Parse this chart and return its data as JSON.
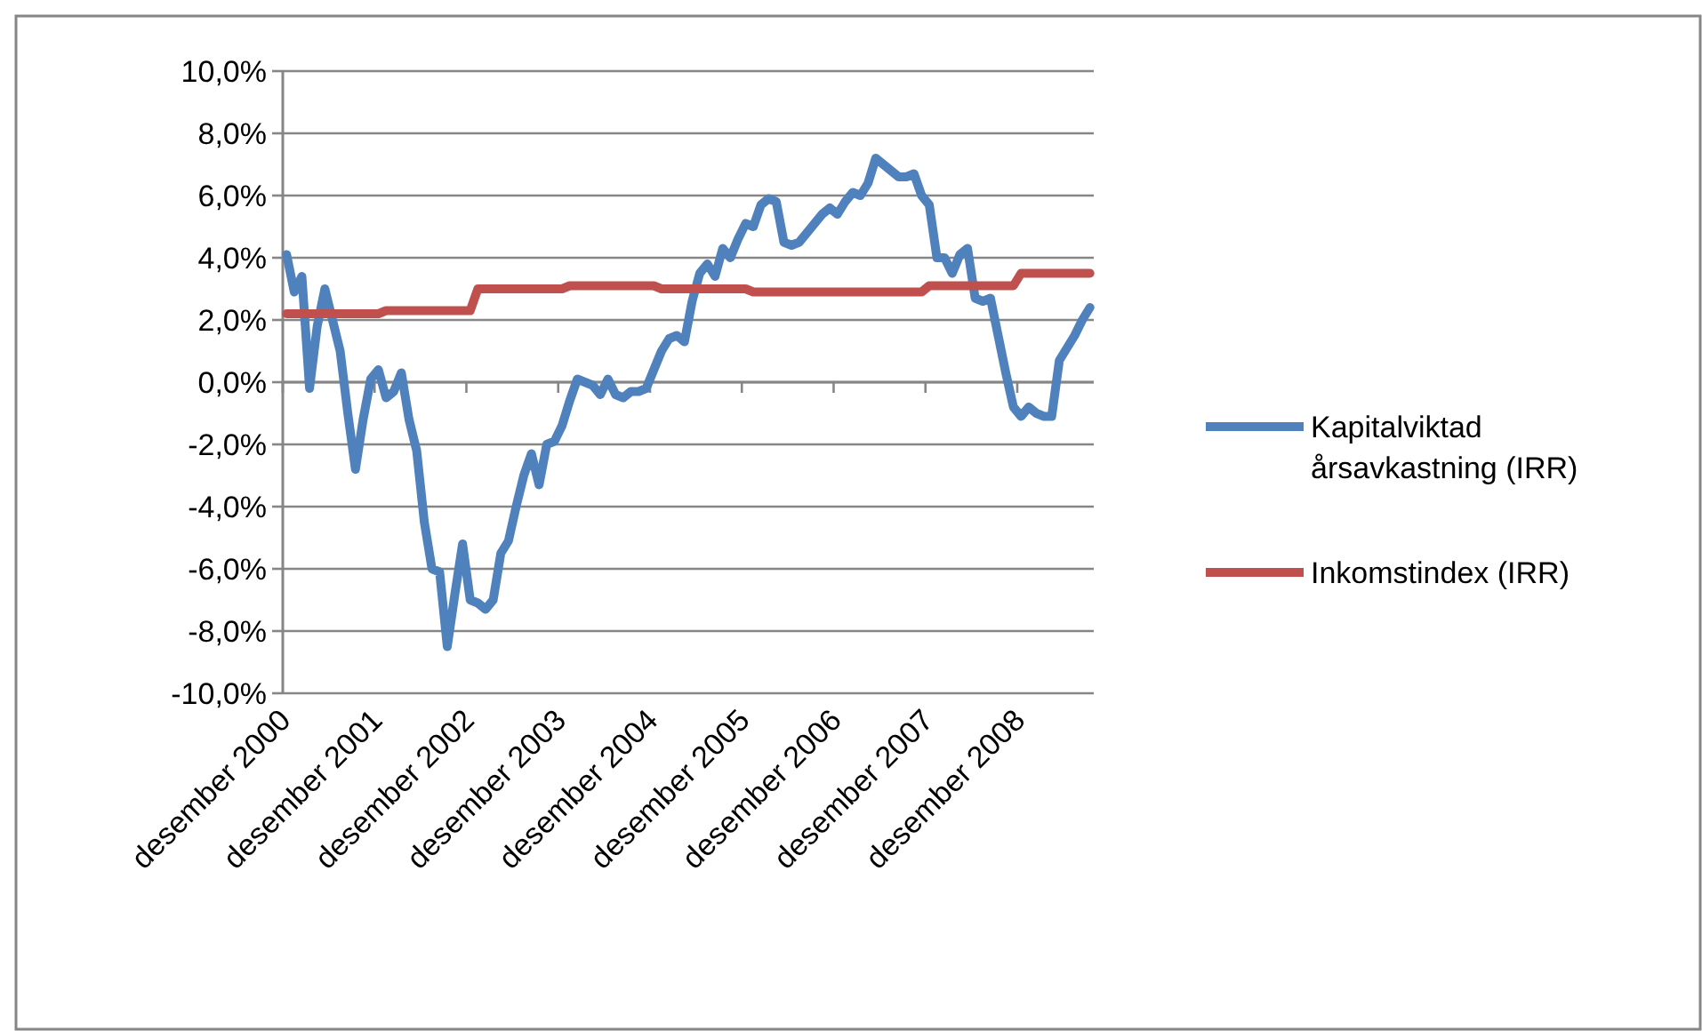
{
  "chart_data": {
    "type": "line",
    "categories": [
      "desember 2000",
      null,
      null,
      null,
      null,
      null,
      null,
      null,
      null,
      null,
      null,
      null,
      "desember 2001",
      null,
      null,
      null,
      null,
      null,
      null,
      null,
      null,
      null,
      null,
      null,
      "desember 2002",
      null,
      null,
      null,
      null,
      null,
      null,
      null,
      null,
      null,
      null,
      null,
      "desember 2003",
      null,
      null,
      null,
      null,
      null,
      null,
      null,
      null,
      null,
      null,
      null,
      "desember 2004",
      null,
      null,
      null,
      null,
      null,
      null,
      null,
      null,
      null,
      null,
      null,
      "desember 2005",
      null,
      null,
      null,
      null,
      null,
      null,
      null,
      null,
      null,
      null,
      null,
      "desember 2006",
      null,
      null,
      null,
      null,
      null,
      null,
      null,
      null,
      null,
      null,
      null,
      "desember 2007",
      null,
      null,
      null,
      null,
      null,
      null,
      null,
      null,
      null,
      null,
      null,
      "desember 2008",
      null,
      null,
      null,
      null,
      null,
      null,
      null,
      null,
      null
    ],
    "series": [
      {
        "name": "Kapitalviktad årsavkastning (IRR)",
        "color": "#4f81bd",
        "values": [
          4.1,
          2.9,
          3.4,
          -0.2,
          1.8,
          3.0,
          2.0,
          1.0,
          -1.0,
          -2.8,
          -1.2,
          0.1,
          0.4,
          -0.5,
          -0.3,
          0.3,
          -1.2,
          -2.2,
          -4.5,
          -6.0,
          -6.1,
          -8.5,
          -6.8,
          -5.2,
          -7.0,
          -7.1,
          -7.3,
          -7.0,
          -5.5,
          -5.1,
          -4.0,
          -3.0,
          -2.3,
          -3.3,
          -2.0,
          -1.9,
          -1.4,
          -0.6,
          0.1,
          0.0,
          -0.1,
          -0.4,
          0.1,
          -0.4,
          -0.5,
          -0.3,
          -0.3,
          -0.2,
          0.4,
          1.0,
          1.4,
          1.5,
          1.3,
          2.6,
          3.5,
          3.8,
          3.4,
          4.3,
          4.0,
          4.6,
          5.1,
          5.0,
          5.7,
          5.9,
          5.8,
          4.5,
          4.4,
          4.5,
          4.8,
          5.1,
          5.4,
          5.6,
          5.4,
          5.8,
          6.1,
          6.0,
          6.4,
          7.2,
          7.0,
          6.8,
          6.6,
          6.6,
          6.7,
          6.0,
          5.7,
          4.0,
          4.0,
          3.5,
          4.1,
          4.3,
          2.7,
          2.6,
          2.7,
          1.5,
          0.3,
          -0.8,
          -1.1,
          -0.8,
          -1.0,
          -1.1,
          -1.1,
          0.7,
          1.1,
          1.5,
          2.0,
          2.4
        ]
      },
      {
        "name": "Inkomstindex (IRR)",
        "color": "#c0504d",
        "values": [
          2.2,
          2.2,
          2.2,
          2.2,
          2.2,
          2.2,
          2.2,
          2.2,
          2.2,
          2.2,
          2.2,
          2.2,
          2.2,
          2.3,
          2.3,
          2.3,
          2.3,
          2.3,
          2.3,
          2.3,
          2.3,
          2.3,
          2.3,
          2.3,
          2.3,
          3.0,
          3.0,
          3.0,
          3.0,
          3.0,
          3.0,
          3.0,
          3.0,
          3.0,
          3.0,
          3.0,
          3.0,
          3.1,
          3.1,
          3.1,
          3.1,
          3.1,
          3.1,
          3.1,
          3.1,
          3.1,
          3.1,
          3.1,
          3.1,
          3.0,
          3.0,
          3.0,
          3.0,
          3.0,
          3.0,
          3.0,
          3.0,
          3.0,
          3.0,
          3.0,
          3.0,
          2.9,
          2.9,
          2.9,
          2.9,
          2.9,
          2.9,
          2.9,
          2.9,
          2.9,
          2.9,
          2.9,
          2.9,
          2.9,
          2.9,
          2.9,
          2.9,
          2.9,
          2.9,
          2.9,
          2.9,
          2.9,
          2.9,
          2.9,
          3.1,
          3.1,
          3.1,
          3.1,
          3.1,
          3.1,
          3.1,
          3.1,
          3.1,
          3.1,
          3.1,
          3.1,
          3.5,
          3.5,
          3.5,
          3.5,
          3.5,
          3.5,
          3.5,
          3.5,
          3.5,
          3.5
        ]
      }
    ],
    "ylim": [
      -10,
      10
    ],
    "yticks": [
      {
        "value": -10,
        "label": "-10,0%"
      },
      {
        "value": -8,
        "label": "-8,0%"
      },
      {
        "value": -6,
        "label": "-6,0%"
      },
      {
        "value": -4,
        "label": "-4,0%"
      },
      {
        "value": -2,
        "label": "-2,0%"
      },
      {
        "value": 0,
        "label": "0,0%"
      },
      {
        "value": 2,
        "label": "2,0%"
      },
      {
        "value": 4,
        "label": "4,0%"
      },
      {
        "value": 6,
        "label": "6,0%"
      },
      {
        "value": 8,
        "label": "8,0%"
      },
      {
        "value": 10,
        "label": "10,0%"
      }
    ],
    "grid": "y",
    "legend": "right",
    "marker": "none",
    "line_style": "solid"
  }
}
